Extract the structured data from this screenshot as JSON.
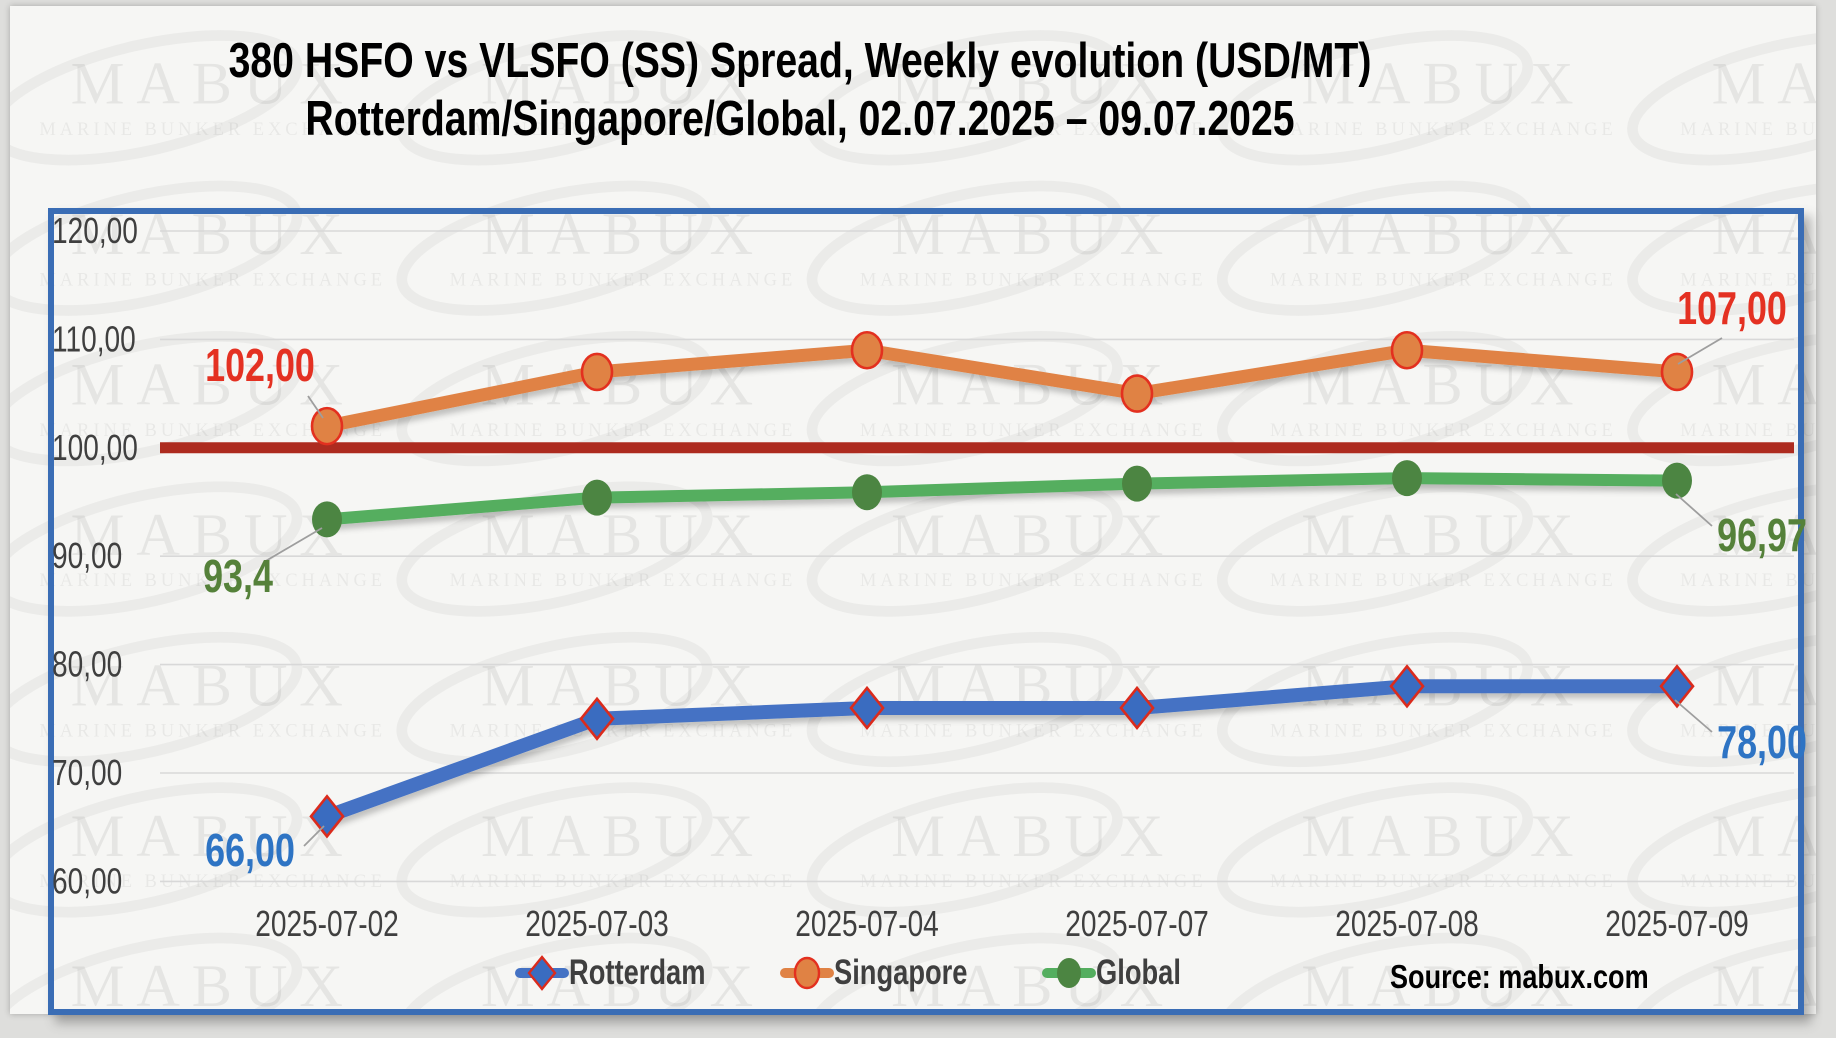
{
  "title": {
    "line1": "380 HSFO vs VLSFO (SS) Spread, Weekly evolution (USD/MT)",
    "line2": "Rotterdam/Singapore/Global, 02.07.2025 – 09.07.2025"
  },
  "source": {
    "text": "Source: mabux.com"
  },
  "watermark": {
    "brand": "MABUX",
    "tagline": "MARINE BUNKER EXCHANGE"
  },
  "chart_data": {
    "type": "line",
    "title": "380 HSFO vs VLSFO (SS) Spread, Weekly evolution (USD/MT) Rotterdam/Singapore/Global, 02.07.2025 – 09.07.2025",
    "categories": [
      "2025-07-02",
      "2025-07-03",
      "2025-07-04",
      "2025-07-07",
      "2025-07-08",
      "2025-07-09"
    ],
    "series": [
      {
        "name": "Rotterdam",
        "color": "#4472c4",
        "marker": "diamond",
        "marker_fill": "#3a6cc0",
        "marker_stroke": "#db2b1c",
        "label_color": "#2e74c4",
        "values": [
          66,
          75,
          76,
          76,
          78,
          78
        ]
      },
      {
        "name": "Singapore",
        "color": "#e08244",
        "marker": "circle",
        "marker_fill": "#e08244",
        "marker_stroke": "#e3301f",
        "label_color": "#e43122",
        "values": [
          102,
          107,
          109,
          105,
          109,
          107
        ]
      },
      {
        "name": "Global",
        "color": "#54ae5f",
        "marker": "circle",
        "marker_fill": "#4c8542",
        "marker_stroke": "none",
        "label_color": "#55813a",
        "values": [
          93.4,
          95.4,
          95.9,
          96.7,
          97.2,
          96.97
        ]
      }
    ],
    "point_labels": [
      {
        "series": "Singapore",
        "index": 0,
        "text": "102,00"
      },
      {
        "series": "Singapore",
        "index": 5,
        "text": "107,00"
      },
      {
        "series": "Global",
        "index": 0,
        "text": "93,4"
      },
      {
        "series": "Global",
        "index": 5,
        "text": "96,97"
      },
      {
        "series": "Rotterdam",
        "index": 0,
        "text": "66,00"
      },
      {
        "series": "Rotterdam",
        "index": 5,
        "text": "78,00"
      }
    ],
    "y_ticks": [
      {
        "value": 120,
        "label": "120,00"
      },
      {
        "value": 110,
        "label": "110,00"
      },
      {
        "value": 100,
        "label": "100,00"
      },
      {
        "value": 90,
        "label": "90,00"
      },
      {
        "value": 80,
        "label": "80,00"
      },
      {
        "value": 70,
        "label": "70,00"
      },
      {
        "value": 60,
        "label": "60,00"
      }
    ],
    "reference_line": {
      "value": 100,
      "color": "#ad2b1f"
    },
    "ylim": [
      60,
      120
    ],
    "grid": true,
    "grid_color": "#d8d8d8",
    "axis_text_color": "#3f3f3f",
    "legend_position": "bottom"
  }
}
